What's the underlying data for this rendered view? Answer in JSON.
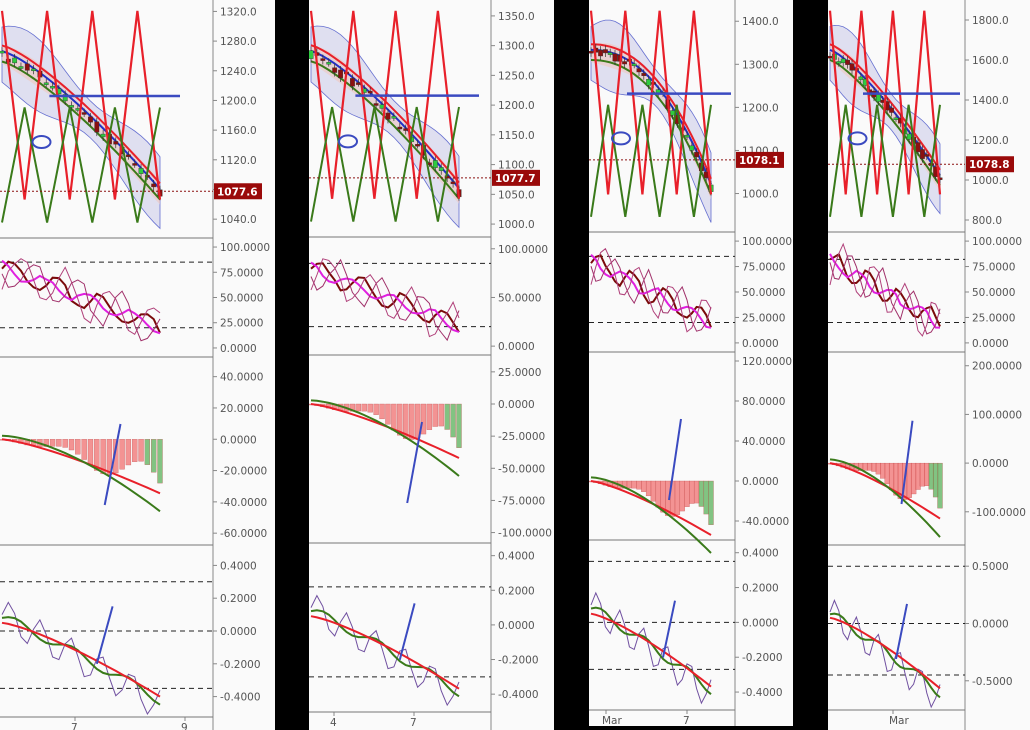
{
  "chart_data": [
    {
      "type": "line",
      "price_tag": "1077.6",
      "x_ticks": [
        "7",
        "9"
      ],
      "panels": [
        {
          "name": "price",
          "ticks": [
            1040,
            1080,
            1120,
            1160,
            1200,
            1240,
            1280,
            1320
          ],
          "tick_labels": [
            "1040.0",
            "1080.0",
            "1120.0",
            "1160.0",
            "1200.0",
            "1240.0",
            "1280.0",
            "1320.0"
          ]
        },
        {
          "name": "stochastic",
          "ticks": [
            0,
            25,
            50,
            75,
            100
          ],
          "tick_labels": [
            "0.0000",
            "25.0000",
            "50.0000",
            "75.0000",
            "100.0000"
          ],
          "dashed": [
            20,
            85
          ]
        },
        {
          "name": "macd",
          "ticks": [
            -60,
            -40,
            -20,
            0,
            20,
            40
          ],
          "tick_labels": [
            "-60.0000",
            "-40.0000",
            "-20.0000",
            "0.0000",
            "20.0000",
            "40.0000"
          ]
        },
        {
          "name": "oscillator",
          "ticks": [
            -0.4,
            -0.2,
            0,
            0.2,
            0.4
          ],
          "tick_labels": [
            "-0.4000",
            "-0.2000",
            "0.0000",
            "0.2000",
            "0.4000"
          ],
          "dashed": [
            -0.35,
            0,
            0.3
          ]
        }
      ]
    },
    {
      "type": "line",
      "price_tag": "1077.7",
      "x_ticks": [
        "4",
        "7"
      ],
      "panels": [
        {
          "name": "price",
          "ticks": [
            1000,
            1050,
            1100,
            1150,
            1200,
            1250,
            1300,
            1350
          ],
          "tick_labels": [
            "1000.0",
            "1050.0",
            "1100.0",
            "1150.0",
            "1200.0",
            "1250.0",
            "1300.0",
            "1350.0"
          ]
        },
        {
          "name": "stochastic",
          "ticks": [
            0,
            50,
            100
          ],
          "tick_labels": [
            "0.0000",
            "50.0000",
            "100.0000"
          ],
          "dashed": [
            20,
            85
          ]
        },
        {
          "name": "macd",
          "ticks": [
            -100,
            -75,
            -50,
            -25,
            0,
            25
          ],
          "tick_labels": [
            "-100.0000",
            "-75.0000",
            "-50.0000",
            "-25.0000",
            "0.0000",
            "25.0000"
          ]
        },
        {
          "name": "oscillator",
          "ticks": [
            -0.4,
            -0.2,
            0,
            0.2,
            0.4
          ],
          "tick_labels": [
            "-0.4000",
            "-0.2000",
            "0.0000",
            "0.2000",
            "0.4000"
          ],
          "dashed": [
            -0.3,
            0.22
          ]
        }
      ]
    },
    {
      "type": "line",
      "price_tag": "1078.1",
      "x_ticks": [
        "Mar",
        "7"
      ],
      "panels": [
        {
          "name": "price",
          "ticks": [
            1000,
            1100,
            1200,
            1300,
            1400
          ],
          "tick_labels": [
            "1000.0",
            "1100.0",
            "1200.0",
            "1300.0",
            "1400.0"
          ]
        },
        {
          "name": "stochastic",
          "ticks": [
            0,
            25,
            50,
            75,
            100
          ],
          "tick_labels": [
            "0.0000",
            "25.0000",
            "50.0000",
            "75.0000",
            "100.0000"
          ],
          "dashed": [
            20,
            85
          ]
        },
        {
          "name": "macd",
          "ticks": [
            -40,
            0,
            40,
            80,
            120
          ],
          "tick_labels": [
            "-40.0000",
            "0.0000",
            "40.0000",
            "80.0000",
            "120.0000"
          ]
        },
        {
          "name": "oscillator",
          "ticks": [
            -0.4,
            -0.2,
            0,
            0.2,
            0.4
          ],
          "tick_labels": [
            "-0.4000",
            "-0.2000",
            "0.0000",
            "0.2000",
            "0.4000"
          ],
          "dashed": [
            -0.27,
            0,
            0.35
          ]
        }
      ]
    },
    {
      "type": "line",
      "price_tag": "1078.8",
      "x_ticks": [
        "Mar"
      ],
      "panels": [
        {
          "name": "price",
          "ticks": [
            800,
            1000,
            1200,
            1400,
            1600,
            1800
          ],
          "tick_labels": [
            "800.0",
            "1000.0",
            "1200.0",
            "1400.0",
            "1600.0",
            "1800.0"
          ]
        },
        {
          "name": "stochastic",
          "ticks": [
            0,
            25,
            50,
            75,
            100
          ],
          "tick_labels": [
            "0.0000",
            "25.0000",
            "50.0000",
            "75.0000",
            "100.0000"
          ],
          "dashed": [
            20,
            82
          ]
        },
        {
          "name": "macd",
          "ticks": [
            -100,
            0,
            100,
            200
          ],
          "tick_labels": [
            "-100.0000",
            "0.0000",
            "100.0000",
            "200.0000"
          ]
        },
        {
          "name": "oscillator",
          "ticks": [
            -0.5,
            0,
            0.5
          ],
          "tick_labels": [
            "-0.5000",
            "0.0000",
            "0.5000"
          ],
          "dashed": [
            -0.45,
            0,
            0.5
          ]
        }
      ]
    }
  ],
  "colors": {
    "bear": "#8b1010",
    "bull": "#2ecc40",
    "red_line": "#e8202a",
    "blue_line": "#2030c8",
    "green_line": "#3a7a1a",
    "magenta": "#e020e0",
    "maroon": "#7a0a0a",
    "annotation": "#3a4ac0",
    "tag_bg": "#9a0a0a"
  }
}
